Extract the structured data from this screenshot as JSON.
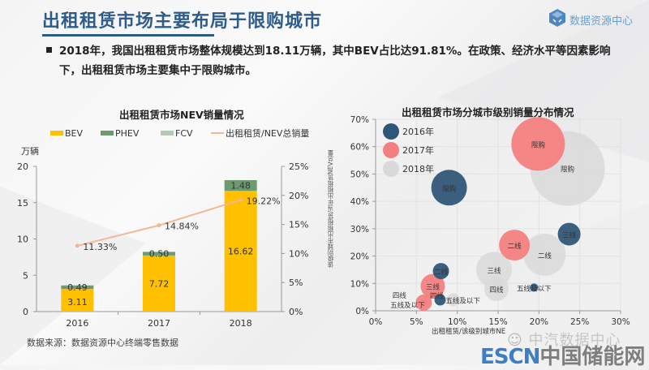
{
  "header": {
    "title": "出租租赁市场主要布局于限购城市",
    "logo_text": "数据资源中心",
    "logo_icon": "cube-logo-icon"
  },
  "bullet": {
    "line1": "2018年，我国出租租赁市场整体规模达到18.11万辆，其中BEV占比达91.81%。在政策、经济水平等因素影响",
    "line2": "下，出租租赁市场主要集中于限购城市。"
  },
  "source": "数据来源：数据资源中心终端零售数据",
  "watermark": {
    "wechat": "中汽数据中心",
    "brand_en": "ESCN",
    "brand_cn": "中国储能网"
  },
  "colors": {
    "title": "#2d5c8a",
    "bev": "#ffc000",
    "phev": "#6e9a72",
    "fcv": "#b5c9b5",
    "line": "#f2b894",
    "y2016": "#2f5678",
    "y2017": "#f47f7f",
    "y2018": "#d9d9d9"
  },
  "chart_data": [
    {
      "type": "bar",
      "stacked": true,
      "title": "出租租赁市场NEV销量情况",
      "unit_label": "万辆",
      "categories": [
        "2016",
        "2017",
        "2018"
      ],
      "series": [
        {
          "name": "BEV",
          "kind": "bar",
          "values": [
            3.11,
            7.72,
            16.62
          ]
        },
        {
          "name": "PHEV",
          "kind": "bar",
          "values": [
            0.49,
            0.5,
            1.48
          ]
        },
        {
          "name": "FCV",
          "kind": "bar",
          "values": [
            0,
            0,
            0
          ]
        },
        {
          "name": "出租租赁/NEV总销量",
          "kind": "line",
          "axis": "right",
          "values": [
            11.33,
            14.84,
            19.22
          ],
          "labels": [
            "11.33%",
            "14.84%",
            "19.22%"
          ]
        }
      ],
      "ylim": [
        0,
        20
      ],
      "yticks": [
        "0",
        "5",
        "10",
        "15",
        "20"
      ],
      "y2lim": [
        0,
        25
      ],
      "y2ticks": [
        "0%",
        "5%",
        "10%",
        "15%",
        "20%",
        "25%"
      ],
      "legend": "top",
      "grid": false
    },
    {
      "type": "scatter",
      "subtype": "bubble",
      "title": "出租租赁市场分城市级别销量分布情况",
      "xlabel": "出租租赁/该级别城市NE",
      "ylabel": "该级别城市出租租赁/当年出租租赁NEV总量",
      "xlim": [
        0,
        30
      ],
      "ylim": [
        0,
        70
      ],
      "xticks": [
        "0%",
        "5%",
        "10%",
        "15%",
        "20%",
        "25%",
        "30%"
      ],
      "yticks": [
        "0%",
        "10%",
        "20%",
        "30%",
        "40%",
        "50%",
        "60%",
        "70%"
      ],
      "grid": true,
      "legend": "top-left",
      "series": [
        {
          "name": "2016年",
          "points": [
            {
              "label": "限购",
              "x": 9.0,
              "y": 45,
              "size": 2.2
            },
            {
              "label": "三线",
              "x": 23.7,
              "y": 28,
              "size": 1.4
            },
            {
              "label": "二线",
              "x": 8.0,
              "y": 14.5,
              "size": 1.0
            },
            {
              "label": "四线",
              "x": 7.9,
              "y": 4,
              "size": 0.7
            },
            {
              "label": "五线及以下",
              "x": 19.4,
              "y": 8.5,
              "size": 0.5
            }
          ]
        },
        {
          "name": "2017年",
          "points": [
            {
              "label": "限购",
              "x": 19.9,
              "y": 61,
              "size": 3.3
            },
            {
              "label": "二线",
              "x": 17.0,
              "y": 24,
              "size": 1.9
            },
            {
              "label": "三线",
              "x": 7.0,
              "y": 9,
              "size": 1.5
            },
            {
              "label": "四线",
              "x": 5.9,
              "y": 3,
              "size": 1.0
            },
            {
              "label": "五线及以下",
              "x": 5.9,
              "y": 3,
              "size": 0.4
            }
          ]
        },
        {
          "name": "2018年",
          "points": [
            {
              "label": "限购",
              "x": 23.5,
              "y": 52,
              "size": 4.6
            },
            {
              "label": "二线",
              "x": 20.7,
              "y": 20.5,
              "size": 2.6
            },
            {
              "label": "三线",
              "x": 14.5,
              "y": 15,
              "size": 2.2
            },
            {
              "label": "四线",
              "x": 14.8,
              "y": 8,
              "size": 1.5
            },
            {
              "label": "五线及以下",
              "x": 9.5,
              "y": 4,
              "size": 0.8
            }
          ]
        }
      ]
    }
  ]
}
